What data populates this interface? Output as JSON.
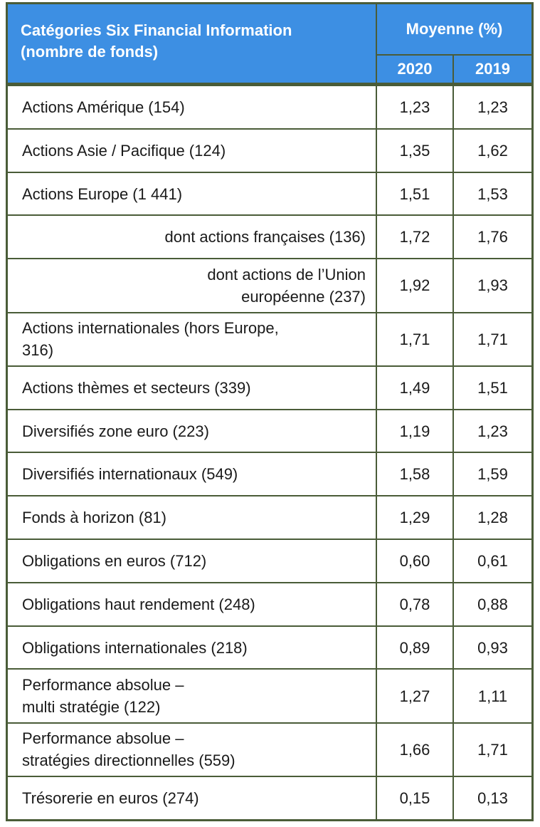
{
  "header": {
    "category_title_line1": "Catégories Six Financial Information",
    "category_title_line2": "(nombre de fonds)",
    "average_title": "Moyenne (%)",
    "year_1": "2020",
    "year_2": "2019"
  },
  "rows": [
    {
      "category": "Actions Amérique (154)",
      "v2020": "1,23",
      "v2019": "1,23"
    },
    {
      "category": "Actions Asie / Pacifique (124)",
      "v2020": "1,35",
      "v2019": "1,62"
    },
    {
      "category": "Actions Europe (1 441)",
      "v2020": "1,51",
      "v2019": "1,53"
    },
    {
      "category": "dont actions françaises (136)",
      "v2020": "1,72",
      "v2019": "1,76"
    },
    {
      "category_line1": "dont actions de l’Union",
      "category_line2": "européenne (237)",
      "v2020": "1,92",
      "v2019": "1,93"
    },
    {
      "category_line1": "Actions internationales (hors Europe,",
      "category_line2": "316)",
      "v2020": "1,71",
      "v2019": "1,71"
    },
    {
      "category": "Actions thèmes et secteurs (339)",
      "v2020": "1,49",
      "v2019": "1,51"
    },
    {
      "category": "Diversifiés zone euro (223)",
      "v2020": "1,19",
      "v2019": "1,23"
    },
    {
      "category": "Diversifiés internationaux (549)",
      "v2020": "1,58",
      "v2019": "1,59"
    },
    {
      "category": "Fonds à horizon (81)",
      "v2020": "1,29",
      "v2019": "1,28"
    },
    {
      "category": "Obligations en euros (712)",
      "v2020": "0,60",
      "v2019": "0,61"
    },
    {
      "category": "Obligations haut rendement (248)",
      "v2020": "0,78",
      "v2019": "0,88"
    },
    {
      "category": "Obligations internationales (218)",
      "v2020": "0,89",
      "v2019": "0,93"
    },
    {
      "category_line1": "Performance absolue –",
      "category_line2": "multi stratégie (122)",
      "v2020": "1,27",
      "v2019": "1,11"
    },
    {
      "category_line1": "Performance absolue –",
      "category_line2": "stratégies directionnelles (559)",
      "v2020": "1,66",
      "v2019": "1,71"
    },
    {
      "category": "Trésorerie en euros (274)",
      "v2020": "0,15",
      "v2019": "0,13"
    }
  ],
  "colors": {
    "header_bg": "#3d8fe3",
    "border": "#4a5c38",
    "header_text": "#ffffff",
    "body_text": "#1a1a1a"
  }
}
